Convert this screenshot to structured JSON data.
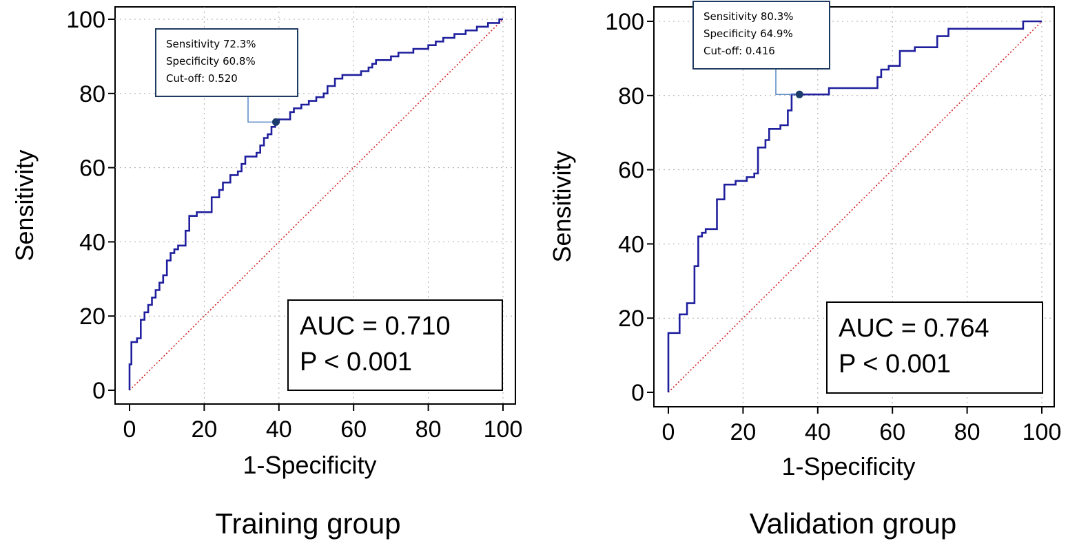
{
  "chart_data": [
    {
      "type": "line",
      "panel_title": "Training group",
      "xlabel": "1-Specificity",
      "ylabel": "Sensitivity",
      "xlim": [
        0,
        100
      ],
      "ylim": [
        0,
        100
      ],
      "xticks": [
        "0",
        "20",
        "40",
        "60",
        "80",
        "100"
      ],
      "yticks": [
        "0",
        "20",
        "40",
        "60",
        "80",
        "100"
      ],
      "grid": true,
      "series": [
        {
          "name": "ROC curve",
          "color": "#1f1f9e",
          "points": [
            [
              0,
              0
            ],
            [
              0,
              7
            ],
            [
              0.5,
              7
            ],
            [
              0.5,
              13
            ],
            [
              2,
              13
            ],
            [
              2,
              14
            ],
            [
              3,
              14
            ],
            [
              3,
              19
            ],
            [
              4,
              19
            ],
            [
              4,
              21
            ],
            [
              5,
              21
            ],
            [
              5,
              23
            ],
            [
              6,
              23
            ],
            [
              6,
              25
            ],
            [
              7,
              25
            ],
            [
              7,
              27
            ],
            [
              8,
              27
            ],
            [
              8,
              29
            ],
            [
              9,
              29
            ],
            [
              9,
              31
            ],
            [
              10,
              31
            ],
            [
              10,
              35
            ],
            [
              11,
              35
            ],
            [
              11,
              37
            ],
            [
              12,
              37
            ],
            [
              12,
              38
            ],
            [
              13,
              38
            ],
            [
              13,
              39
            ],
            [
              15,
              39
            ],
            [
              15,
              43
            ],
            [
              16,
              43
            ],
            [
              16,
              47
            ],
            [
              18,
              47
            ],
            [
              18,
              48
            ],
            [
              22,
              48
            ],
            [
              22,
              52
            ],
            [
              24,
              52
            ],
            [
              24,
              54
            ],
            [
              25,
              54
            ],
            [
              25,
              56
            ],
            [
              27,
              56
            ],
            [
              27,
              58
            ],
            [
              29,
              58
            ],
            [
              29,
              59
            ],
            [
              30,
              59
            ],
            [
              30,
              61
            ],
            [
              31,
              61
            ],
            [
              31,
              63
            ],
            [
              34,
              63
            ],
            [
              34,
              64
            ],
            [
              35,
              64
            ],
            [
              35,
              66
            ],
            [
              36,
              66
            ],
            [
              36,
              68
            ],
            [
              37,
              68
            ],
            [
              37,
              69
            ],
            [
              38,
              69
            ],
            [
              38,
              71
            ],
            [
              39,
              71
            ],
            [
              39,
              72.3
            ],
            [
              40,
              72.3
            ],
            [
              40,
              73
            ],
            [
              43,
              73
            ],
            [
              43,
              75
            ],
            [
              44,
              75
            ],
            [
              44,
              76
            ],
            [
              46,
              76
            ],
            [
              46,
              77
            ],
            [
              48,
              77
            ],
            [
              48,
              78
            ],
            [
              50,
              78
            ],
            [
              50,
              79
            ],
            [
              52,
              79
            ],
            [
              52,
              80
            ],
            [
              53,
              80
            ],
            [
              53,
              82
            ],
            [
              55,
              82
            ],
            [
              55,
              84
            ],
            [
              57,
              84
            ],
            [
              57,
              85
            ],
            [
              62,
              85
            ],
            [
              62,
              86
            ],
            [
              64,
              86
            ],
            [
              64,
              87
            ],
            [
              65,
              87
            ],
            [
              65,
              88
            ],
            [
              66,
              88
            ],
            [
              66,
              89
            ],
            [
              70,
              89
            ],
            [
              70,
              90
            ],
            [
              72,
              90
            ],
            [
              72,
              91
            ],
            [
              76,
              91
            ],
            [
              76,
              92
            ],
            [
              80,
              92
            ],
            [
              80,
              93
            ],
            [
              82,
              93
            ],
            [
              82,
              94
            ],
            [
              84,
              94
            ],
            [
              84,
              95
            ],
            [
              87,
              95
            ],
            [
              87,
              96
            ],
            [
              90,
              96
            ],
            [
              90,
              97
            ],
            [
              93,
              97
            ],
            [
              93,
              98
            ],
            [
              96,
              98
            ],
            [
              96,
              99
            ],
            [
              99,
              99
            ],
            [
              99,
              100
            ],
            [
              100,
              100
            ]
          ]
        },
        {
          "name": "reference",
          "color": "#d42020",
          "points": [
            [
              0,
              0
            ],
            [
              100,
              100
            ]
          ]
        }
      ],
      "cutoff_point": {
        "x": 39.2,
        "y": 72.3
      },
      "annotation_lines": [
        "Sensitivity 72.3%",
        "Specificity 60.8%",
        "Cut-off: 0.520"
      ],
      "auc_label": "AUC = 0.710",
      "p_label": "P < 0.001"
    },
    {
      "type": "line",
      "panel_title": "Validation group",
      "xlabel": "1-Specificity",
      "ylabel": "Sensitivity",
      "xlim": [
        0,
        100
      ],
      "ylim": [
        0,
        100
      ],
      "xticks": [
        "0",
        "20",
        "40",
        "60",
        "80",
        "100"
      ],
      "yticks": [
        "0",
        "20",
        "40",
        "60",
        "80",
        "100"
      ],
      "grid": true,
      "series": [
        {
          "name": "ROC curve",
          "color": "#1f1f9e",
          "points": [
            [
              0,
              0
            ],
            [
              0,
              16
            ],
            [
              3,
              16
            ],
            [
              3,
              21
            ],
            [
              5,
              21
            ],
            [
              5,
              24
            ],
            [
              7,
              24
            ],
            [
              7,
              34
            ],
            [
              8,
              34
            ],
            [
              8,
              42
            ],
            [
              9,
              42
            ],
            [
              9,
              43
            ],
            [
              10,
              43
            ],
            [
              10,
              44
            ],
            [
              13,
              44
            ],
            [
              13,
              52
            ],
            [
              15,
              52
            ],
            [
              15,
              56
            ],
            [
              18,
              56
            ],
            [
              18,
              57
            ],
            [
              21,
              57
            ],
            [
              21,
              58
            ],
            [
              23,
              58
            ],
            [
              23,
              59
            ],
            [
              24,
              59
            ],
            [
              24,
              66
            ],
            [
              26,
              66
            ],
            [
              26,
              68
            ],
            [
              27,
              68
            ],
            [
              27,
              71
            ],
            [
              30,
              71
            ],
            [
              30,
              72
            ],
            [
              32,
              72
            ],
            [
              32,
              76
            ],
            [
              33,
              76
            ],
            [
              33,
              80.3
            ],
            [
              43,
              80.3
            ],
            [
              43,
              82
            ],
            [
              56,
              82
            ],
            [
              56,
              85
            ],
            [
              57,
              85
            ],
            [
              57,
              87
            ],
            [
              59,
              87
            ],
            [
              59,
              88
            ],
            [
              62,
              88
            ],
            [
              62,
              92
            ],
            [
              66,
              92
            ],
            [
              66,
              93
            ],
            [
              72,
              93
            ],
            [
              72,
              96
            ],
            [
              75,
              96
            ],
            [
              75,
              98
            ],
            [
              95,
              98
            ],
            [
              95,
              100
            ],
            [
              100,
              100
            ]
          ]
        },
        {
          "name": "reference",
          "color": "#d42020",
          "points": [
            [
              0,
              0
            ],
            [
              100,
              100
            ]
          ]
        }
      ],
      "cutoff_point": {
        "x": 35.1,
        "y": 80.3
      },
      "annotation_lines": [
        "Sensitivity 80.3%",
        "Specificity 64.9%",
        "Cut-off: 0.416"
      ],
      "auc_label": "AUC = 0.764",
      "p_label": "P < 0.001"
    }
  ]
}
